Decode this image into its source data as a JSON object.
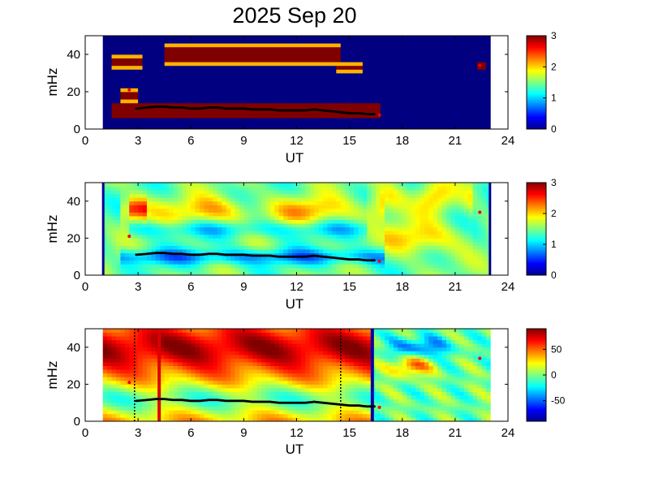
{
  "figure_title": "2025 Sep 20",
  "chart_data": [
    {
      "type": "heatmap",
      "panel": 1,
      "xlabel": "UT",
      "ylabel": "mHz",
      "xlim": [
        0,
        24
      ],
      "ylim": [
        0,
        50
      ],
      "xticks": [
        "0",
        "3",
        "6",
        "9",
        "12",
        "15",
        "18",
        "21",
        "24"
      ],
      "yticks": [
        "0",
        "20",
        "40"
      ],
      "colorbar": {
        "range": [
          0,
          3
        ],
        "ticks": [
          "0",
          "1",
          "2",
          "3"
        ]
      },
      "data_window_ut": [
        1.0,
        23.0
      ],
      "description_colors": {
        "background": "#00008f",
        "high": "#8f0000",
        "edge": "#ff8000"
      },
      "high_regions": [
        {
          "ut": [
            1.5,
            16.7
          ],
          "mhz_center": 10,
          "mhz_halfwidth": 4
        },
        {
          "ut": [
            2.0,
            3.0
          ],
          "mhz_center": 18,
          "mhz_halfwidth": 3
        },
        {
          "ut": [
            1.5,
            3.2
          ],
          "mhz_center": 36,
          "mhz_halfwidth": 3
        },
        {
          "ut": [
            4.5,
            14.5
          ],
          "mhz_center": 40,
          "mhz_halfwidth": 5
        },
        {
          "ut": [
            14.3,
            15.8
          ],
          "mhz_center": 33,
          "mhz_halfwidth": 2
        },
        {
          "ut": [
            22.2,
            22.7
          ],
          "mhz_center": 34,
          "mhz_halfwidth": 2
        }
      ]
    },
    {
      "type": "heatmap",
      "panel": 2,
      "xlabel": "UT",
      "ylabel": "mHz",
      "xlim": [
        0,
        24
      ],
      "ylim": [
        0,
        50
      ],
      "xticks": [
        "0",
        "3",
        "6",
        "9",
        "12",
        "15",
        "18",
        "21",
        "24"
      ],
      "yticks": [
        "0",
        "20",
        "40"
      ],
      "colorbar": {
        "range": [
          0,
          3
        ],
        "ticks": [
          "0",
          "1",
          "2",
          "3"
        ]
      },
      "data_window_ut": [
        1.0,
        23.0
      ]
    },
    {
      "type": "heatmap",
      "panel": 3,
      "xlabel": "UT",
      "ylabel": "mHz",
      "xlim": [
        0,
        24
      ],
      "ylim": [
        0,
        50
      ],
      "xticks": [
        "0",
        "3",
        "6",
        "9",
        "12",
        "15",
        "18",
        "21",
        "24"
      ],
      "yticks": [
        "0",
        "20",
        "40"
      ],
      "colorbar": {
        "range": [
          -90,
          90
        ],
        "ticks": [
          "50",
          "0",
          "-50"
        ]
      },
      "data_window_ut": [
        1.0,
        23.0
      ],
      "vertical_markers": [
        {
          "ut": 2.8,
          "style": "dotted",
          "color": "#000000"
        },
        {
          "ut": 4.2,
          "style": "solid",
          "color": "#dd0000"
        },
        {
          "ut": 14.5,
          "style": "dotted",
          "color": "#000000"
        },
        {
          "ut": 16.3,
          "style": "solid",
          "color": "#0000aa"
        }
      ]
    }
  ],
  "ridge_line": {
    "ut": [
      2.9,
      3.5,
      4.0,
      4.5,
      5.0,
      5.5,
      6.0,
      6.5,
      7.0,
      7.5,
      8.0,
      8.5,
      9.0,
      9.5,
      10.0,
      10.5,
      11.0,
      11.5,
      12.0,
      12.5,
      13.0,
      13.5,
      14.0,
      14.5,
      15.0,
      15.5,
      16.0,
      16.5
    ],
    "mhz": [
      11,
      11.5,
      12,
      12,
      11.5,
      11.5,
      11,
      11,
      11.5,
      11.5,
      11,
      11,
      11,
      10.5,
      10.5,
      10.5,
      10,
      10,
      10,
      10,
      10.5,
      10,
      9.5,
      9,
      8.5,
      8.5,
      8,
      8
    ]
  },
  "red_markers": [
    {
      "ut": 2.5,
      "mhz": 21
    },
    {
      "ut": 16.7,
      "mhz": 7.5
    },
    {
      "ut": 22.4,
      "mhz": 34
    }
  ]
}
